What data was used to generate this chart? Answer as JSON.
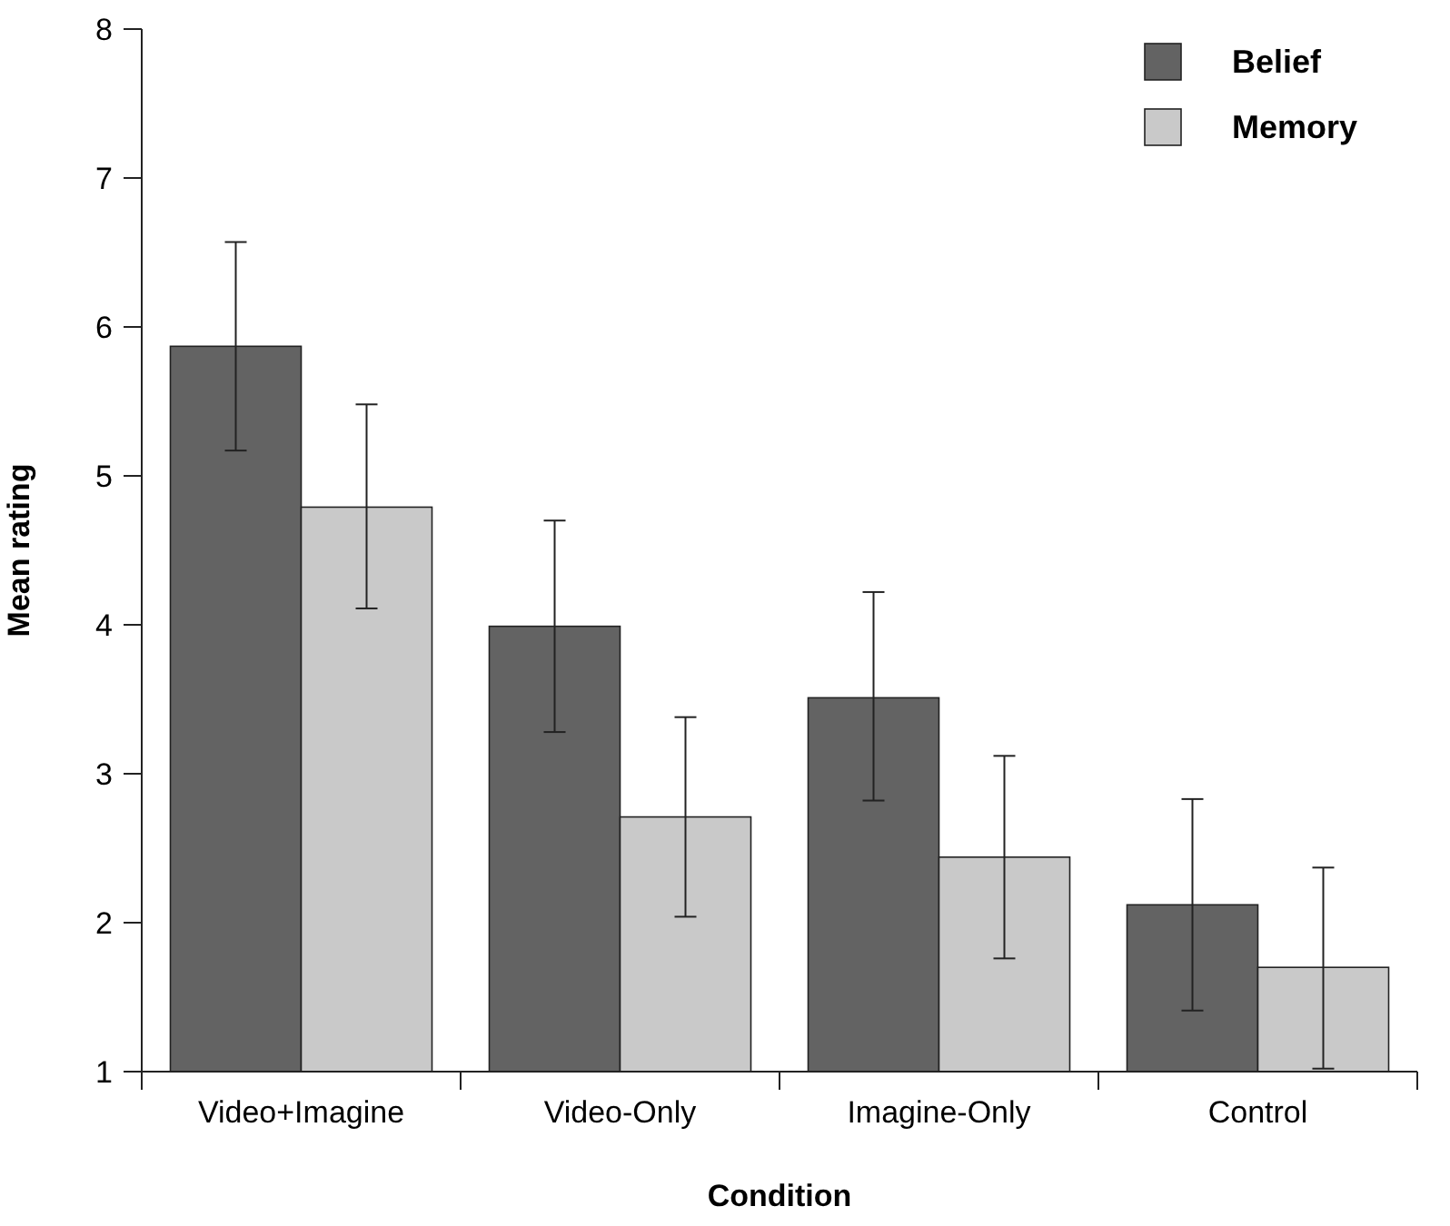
{
  "chart_data": {
    "type": "bar",
    "xlabel": "Condition",
    "ylabel": "Mean rating",
    "categories": [
      "Video+Imagine",
      "Video-Only",
      "Imagine-Only",
      "Control"
    ],
    "series": [
      {
        "name": "Belief",
        "color": "#636363",
        "values": [
          5.87,
          3.99,
          3.51,
          2.12
        ],
        "errors": [
          [
            5.17,
            6.57
          ],
          [
            3.28,
            4.7
          ],
          [
            2.82,
            4.22
          ],
          [
            1.41,
            2.83
          ]
        ]
      },
      {
        "name": "Memory",
        "color": "#c9c9c9",
        "values": [
          4.79,
          2.71,
          2.44,
          1.7
        ],
        "errors": [
          [
            4.11,
            5.48
          ],
          [
            2.04,
            3.38
          ],
          [
            1.76,
            3.12
          ],
          [
            1.02,
            2.37
          ]
        ]
      }
    ],
    "ylim": [
      1,
      8
    ],
    "yticks": [
      1,
      2,
      3,
      4,
      5,
      6,
      7,
      8
    ],
    "grid": false,
    "legend": "top right"
  }
}
